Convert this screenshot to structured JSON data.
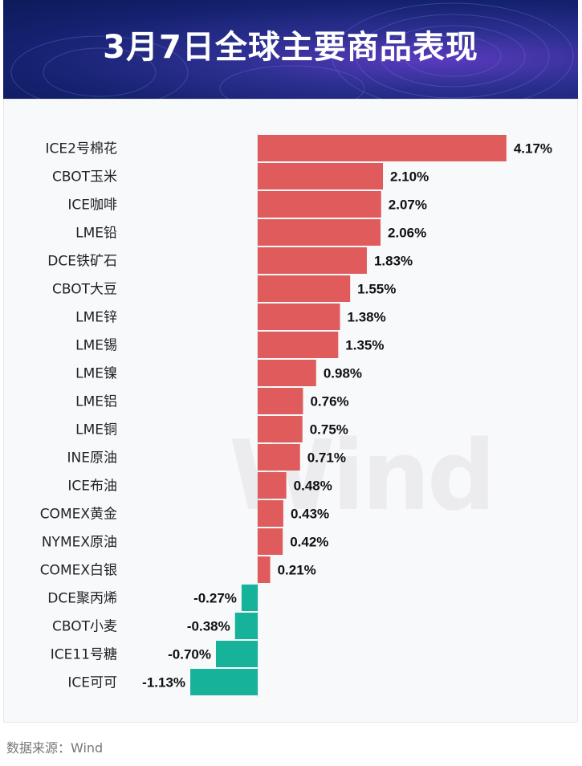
{
  "header": {
    "title": "3月7日全球主要商品表现"
  },
  "watermark": "Wind",
  "footer": {
    "source": "数据来源：Wind"
  },
  "colors": {
    "positive": "#e05c5c",
    "negative": "#17b29a",
    "banner": "#14216e",
    "label": "#222222"
  },
  "chart_data": {
    "type": "bar",
    "orientation": "horizontal",
    "title": "3月7日全球主要商品表现",
    "categories": [
      "ICE2号棉花",
      "CBOT玉米",
      "ICE咖啡",
      "LME铅",
      "DCE铁矿石",
      "CBOT大豆",
      "LME锌",
      "LME锡",
      "LME镍",
      "LME铝",
      "LME铜",
      "INE原油",
      "ICE布油",
      "COMEX黄金",
      "NYMEX原油",
      "COMEX白银",
      "DCE聚丙烯",
      "CBOT小麦",
      "ICE11号糖",
      "ICE可可"
    ],
    "values": [
      4.17,
      2.1,
      2.07,
      2.06,
      1.83,
      1.55,
      1.38,
      1.35,
      0.98,
      0.76,
      0.75,
      0.71,
      0.48,
      0.43,
      0.42,
      0.21,
      -0.27,
      -0.38,
      -0.7,
      -1.13
    ],
    "value_labels": [
      "4.17%",
      "2.10%",
      "2.07%",
      "2.06%",
      "1.83%",
      "1.55%",
      "1.38%",
      "1.35%",
      "0.98%",
      "0.76%",
      "0.75%",
      "0.71%",
      "0.48%",
      "0.43%",
      "0.42%",
      "0.21%",
      "-0.27%",
      "-0.38%",
      "-0.70%",
      "-1.13%"
    ],
    "unit": "%",
    "grid": false,
    "legend": "none"
  }
}
